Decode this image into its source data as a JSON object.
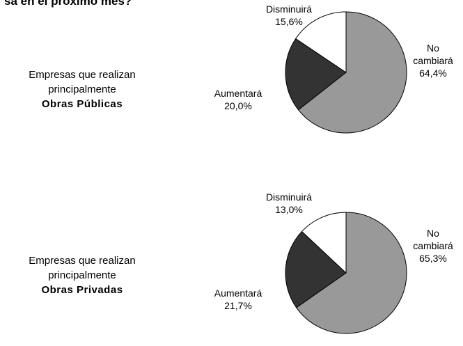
{
  "title": "sa en el próximo mes?",
  "chart_data": [
    {
      "type": "pie",
      "description": [
        "Empresas que realizan",
        "principalmente"
      ],
      "group": "Obras Públicas",
      "categories": [
        "No cambiará",
        "Aumentará",
        "Disminuirá"
      ],
      "values": [
        64.4,
        20.0,
        15.6
      ],
      "value_labels": [
        "64,4%",
        "20,0%",
        "15,6%"
      ],
      "colors": [
        "#999999",
        "#333333",
        "#ffffff"
      ]
    },
    {
      "type": "pie",
      "description": [
        "Empresas que realizan",
        "principalmente"
      ],
      "group": "Obras Privadas",
      "categories": [
        "No cambiará",
        "Aumentará",
        "Disminuirá"
      ],
      "values": [
        65.3,
        21.7,
        13.0
      ],
      "value_labels": [
        "65,3%",
        "21,7%",
        "13,0%"
      ],
      "colors": [
        "#999999",
        "#333333",
        "#ffffff"
      ]
    }
  ]
}
